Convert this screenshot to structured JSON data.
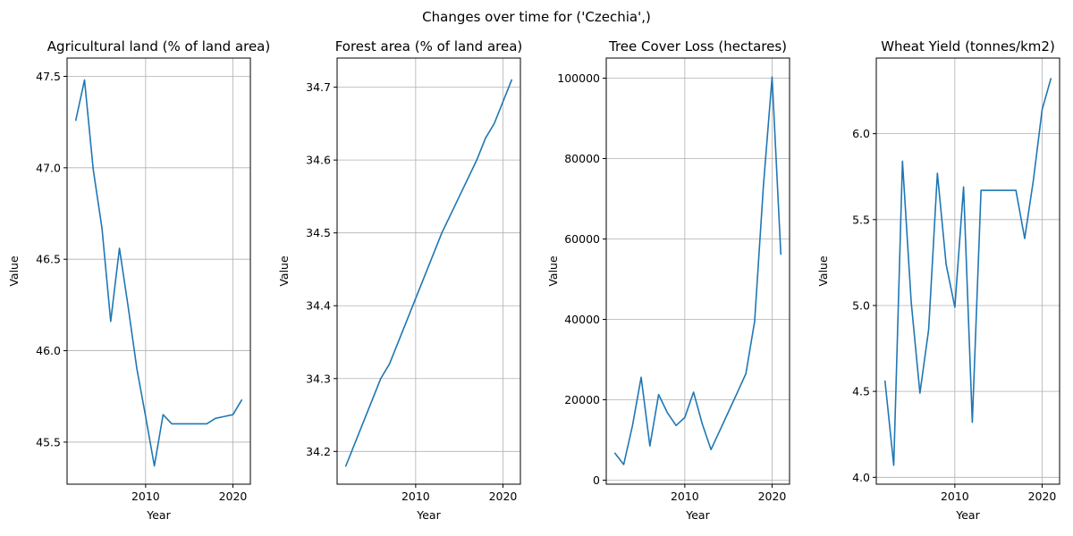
{
  "figure": {
    "suptitle": "Changes over time for ('Czechia',)",
    "line_color": "#1f77b4"
  },
  "chart_data": [
    {
      "type": "line",
      "title": "Agricultural land (% of land area)",
      "xlabel": "Year",
      "ylabel": "Value",
      "grid": true,
      "xlim": [
        2001,
        2022
      ],
      "ylim": [
        45.27,
        47.6
      ],
      "xticks": [
        2010,
        2020
      ],
      "yticks": [
        45.5,
        46.0,
        46.5,
        47.0,
        47.5
      ],
      "ytick_labels": [
        "45.5",
        "46.0",
        "46.5",
        "47.0",
        "47.5"
      ],
      "x": [
        2002,
        2003,
        2004,
        2005,
        2006,
        2007,
        2008,
        2009,
        2010,
        2011,
        2012,
        2013,
        2014,
        2015,
        2016,
        2017,
        2018,
        2019,
        2020,
        2021
      ],
      "values": [
        47.26,
        47.48,
        46.99,
        46.67,
        46.16,
        46.56,
        46.24,
        45.9,
        45.64,
        45.37,
        45.65,
        45.6,
        45.6,
        45.6,
        45.6,
        45.6,
        45.63,
        45.64,
        45.65,
        45.73
      ]
    },
    {
      "type": "line",
      "title": "Forest area (% of land area)",
      "xlabel": "Year",
      "ylabel": "Value",
      "grid": true,
      "xlim": [
        2001,
        2022
      ],
      "ylim": [
        34.155,
        34.74
      ],
      "xticks": [
        2010,
        2020
      ],
      "yticks": [
        34.2,
        34.3,
        34.4,
        34.5,
        34.6,
        34.7
      ],
      "ytick_labels": [
        "34.2",
        "34.3",
        "34.4",
        "34.5",
        "34.6",
        "34.7"
      ],
      "x": [
        2002,
        2004,
        2006,
        2007,
        2010,
        2013,
        2015,
        2017,
        2018,
        2019,
        2020,
        2021
      ],
      "values": [
        34.18,
        34.24,
        34.3,
        34.32,
        34.41,
        34.5,
        34.55,
        34.6,
        34.63,
        34.65,
        34.68,
        34.71
      ]
    },
    {
      "type": "line",
      "title": "Tree Cover Loss (hectares)",
      "xlabel": "Year",
      "ylabel": "Value",
      "grid": true,
      "xlim": [
        2001,
        2022
      ],
      "ylim": [
        -1000,
        105000
      ],
      "xticks": [
        2010,
        2020
      ],
      "yticks": [
        0,
        20000,
        40000,
        60000,
        80000,
        100000
      ],
      "ytick_labels": [
        "0",
        "20000",
        "40000",
        "60000",
        "80000",
        "100000"
      ],
      "x": [
        2002,
        2003,
        2004,
        2005,
        2006,
        2007,
        2008,
        2009,
        2010,
        2011,
        2012,
        2013,
        2014,
        2015,
        2016,
        2017,
        2018,
        2019,
        2020,
        2021
      ],
      "values": [
        6700,
        3900,
        13500,
        25600,
        8500,
        21300,
        16800,
        13600,
        15600,
        21900,
        14000,
        7600,
        12300,
        17000,
        21700,
        26500,
        39500,
        73000,
        100300,
        56200
      ]
    },
    {
      "type": "line",
      "title": "Wheat Yield (tonnes/km2)",
      "xlabel": "Year",
      "ylabel": "Value",
      "grid": true,
      "xlim": [
        2001,
        2022
      ],
      "ylim": [
        3.96,
        6.44
      ],
      "xticks": [
        2010,
        2020
      ],
      "yticks": [
        4.0,
        4.5,
        5.0,
        5.5,
        6.0
      ],
      "ytick_labels": [
        "4.0",
        "4.5",
        "5.0",
        "5.5",
        "6.0"
      ],
      "x": [
        2002,
        2003,
        2004,
        2005,
        2006,
        2007,
        2008,
        2009,
        2010,
        2011,
        2012,
        2013,
        2014,
        2015,
        2016,
        2017,
        2018,
        2019,
        2020,
        2021
      ],
      "values": [
        4.56,
        4.07,
        5.84,
        5.02,
        4.49,
        4.86,
        5.77,
        5.24,
        4.99,
        5.69,
        4.32,
        5.67,
        5.67,
        5.67,
        5.67,
        5.67,
        5.39,
        5.73,
        6.14,
        6.32
      ]
    }
  ]
}
